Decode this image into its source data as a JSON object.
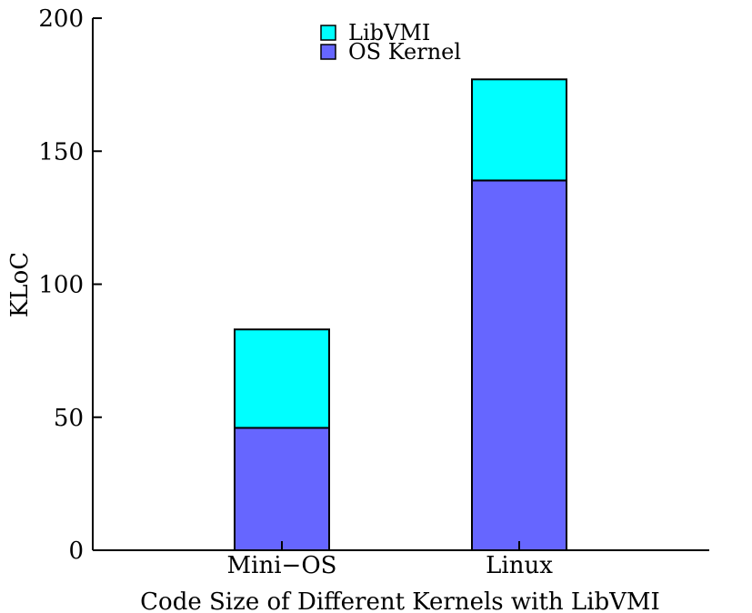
{
  "chart_data": {
    "type": "bar",
    "stacked": true,
    "categories": [
      "Mini−OS",
      "Linux"
    ],
    "series": [
      {
        "name": "OS Kernel",
        "values": [
          46,
          139
        ],
        "color": "#6666ff"
      },
      {
        "name": "LibVMI",
        "values": [
          37,
          38
        ],
        "color": "#00ffff"
      }
    ],
    "legend_order": [
      "LibVMI",
      "OS Kernel"
    ],
    "xlabel": "Code Size of Different Kernels with LibVMI",
    "ylabel": "KLoC",
    "ylim": [
      0,
      200
    ],
    "yticks": [
      0,
      50,
      100,
      150,
      200
    ],
    "grid": false,
    "legend_position": "top-center"
  }
}
